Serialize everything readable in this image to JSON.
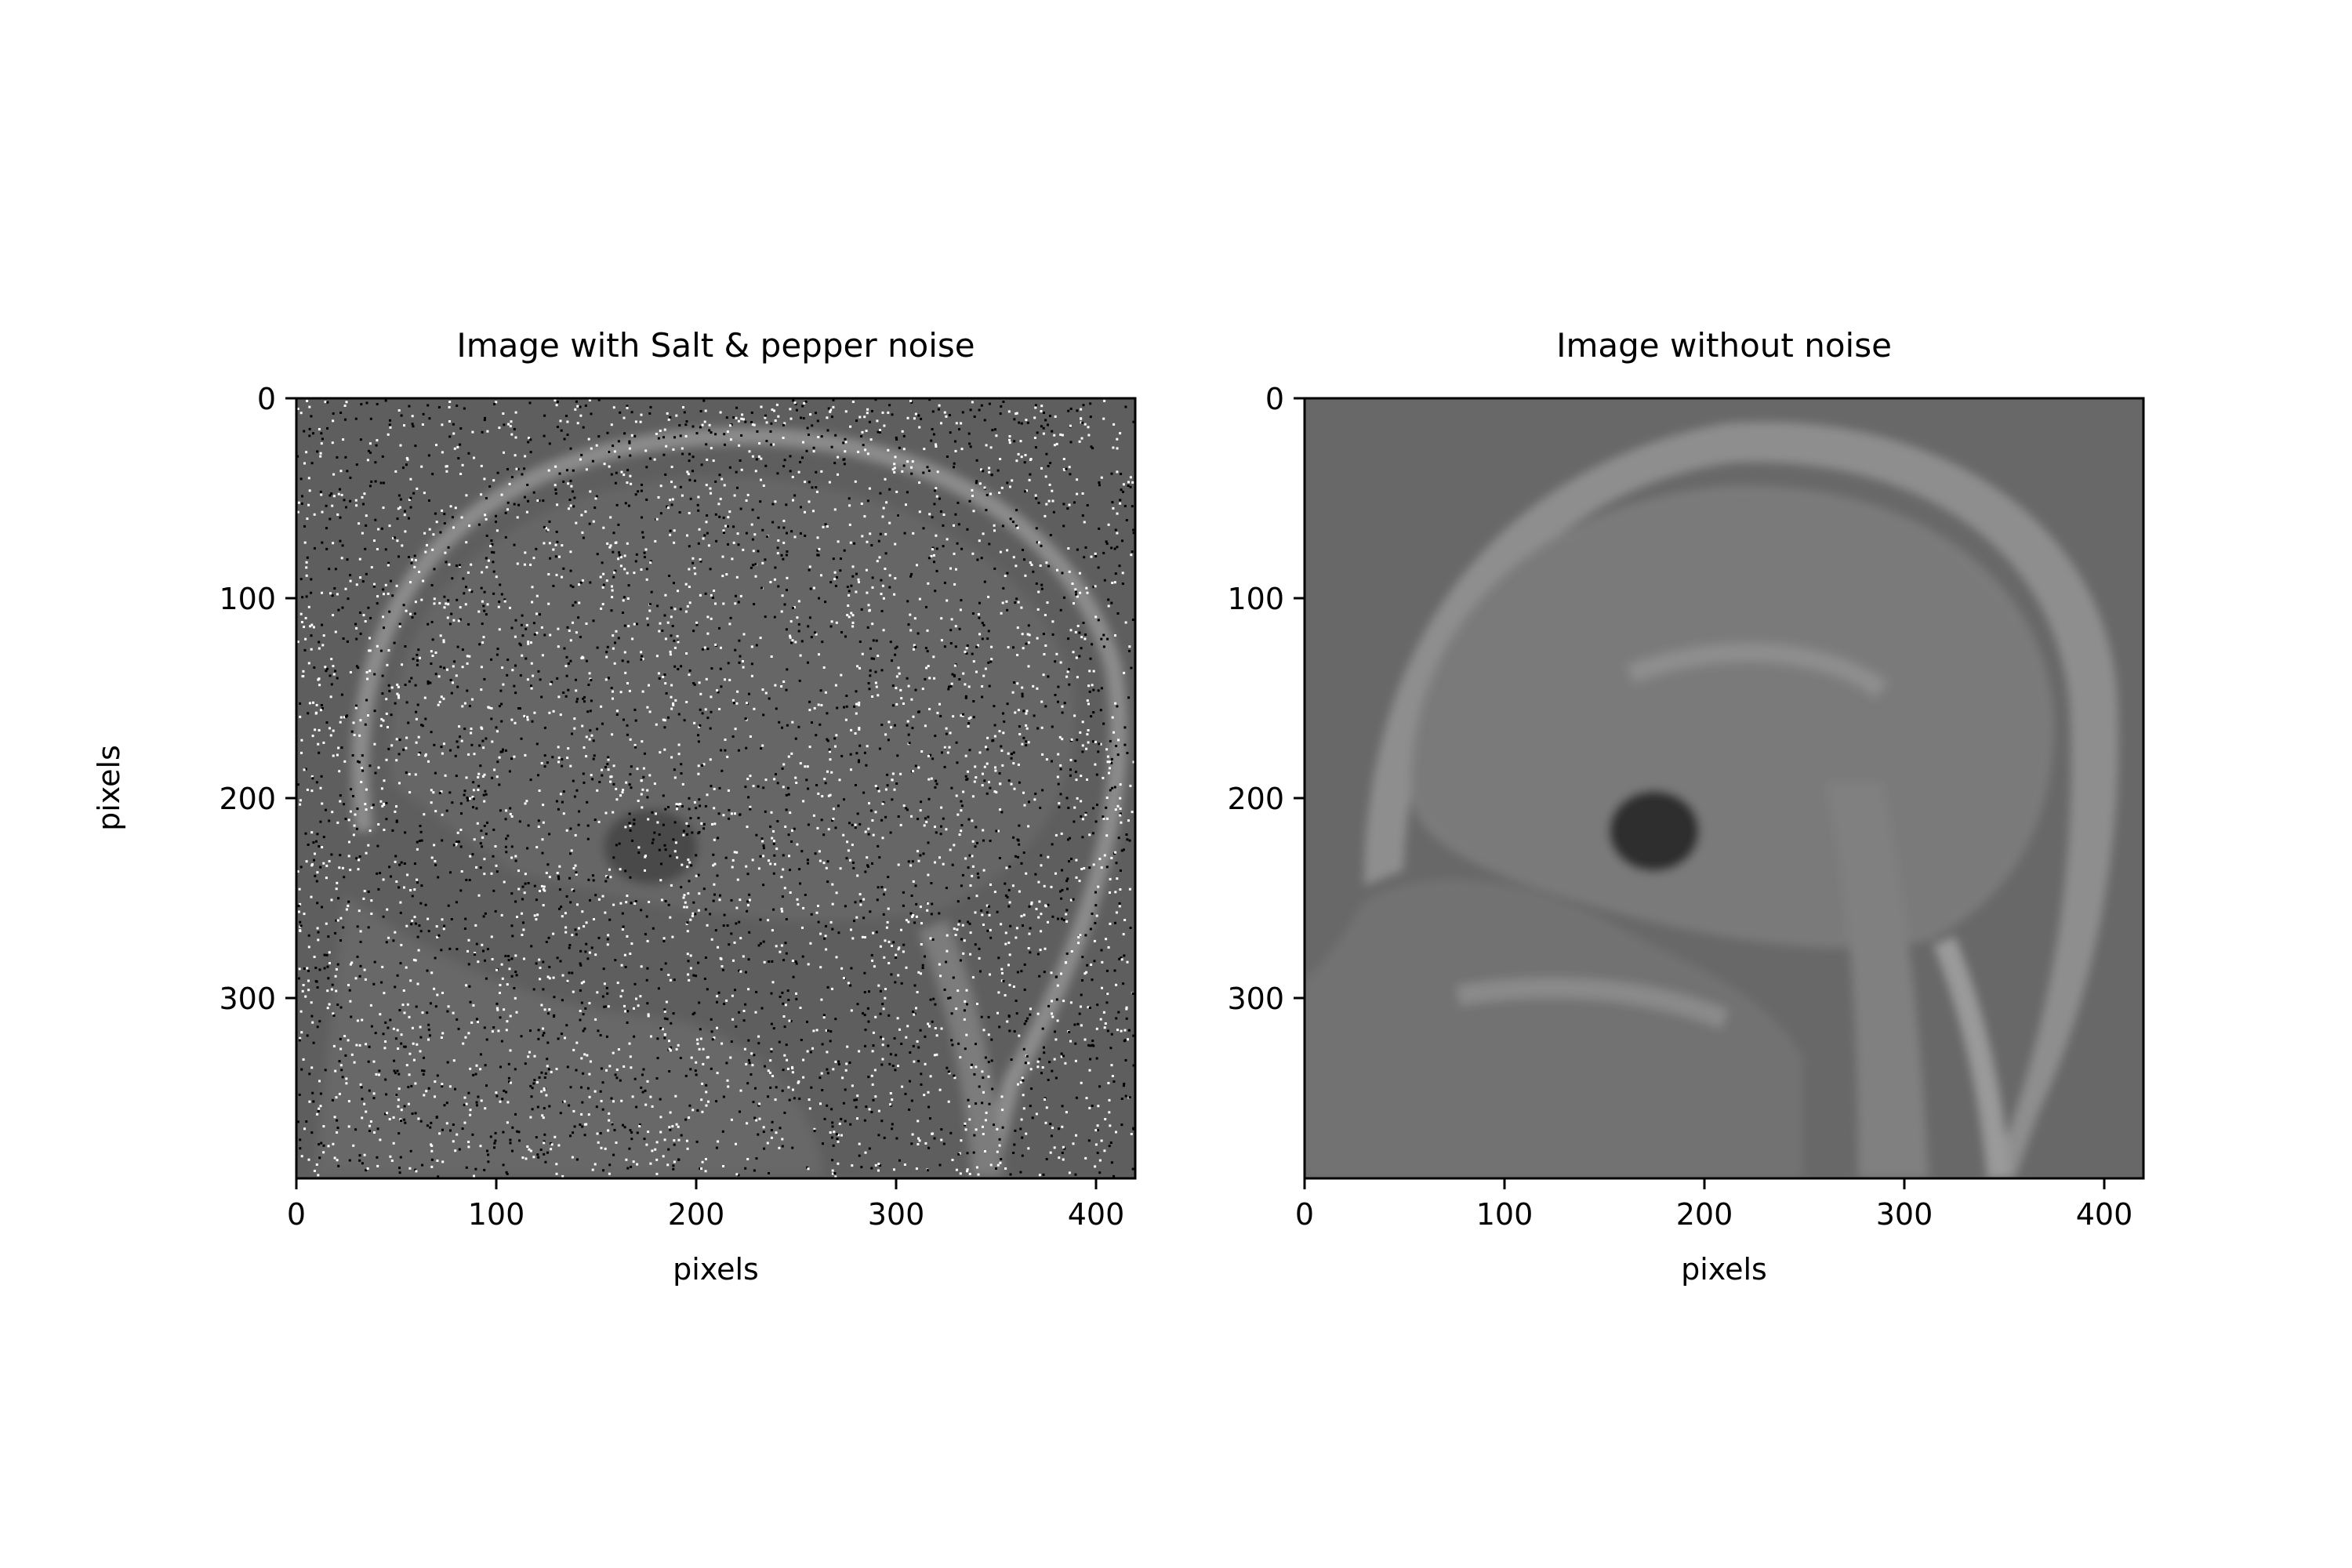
{
  "chart_data": [
    {
      "type": "heatmap",
      "title": "Image with Salt & pepper noise",
      "xlabel": "pixels",
      "ylabel": "pixels",
      "x_ticks": [
        0,
        100,
        200,
        300,
        400
      ],
      "y_ticks": [
        0,
        100,
        200,
        300
      ],
      "xlim": [
        0,
        420
      ],
      "ylim": [
        390,
        0
      ],
      "colormap": "gray",
      "content": "sagittal head MRI slice with salt-and-pepper noise"
    },
    {
      "type": "heatmap",
      "title": "Image without noise",
      "xlabel": "pixels",
      "ylabel": "",
      "x_ticks": [
        0,
        100,
        200,
        300,
        400
      ],
      "y_ticks": [
        0,
        100,
        200,
        300
      ],
      "xlim": [
        0,
        420
      ],
      "ylim": [
        390,
        0
      ],
      "colormap": "gray",
      "content": "sagittal head MRI slice"
    }
  ],
  "colors": {
    "noisy_background": "#5e5e5e",
    "clean_background": "#686868",
    "tissue": "#7a7a7a",
    "bright_tissue": "#9a9a9a",
    "dark_cavity": "#2e2e2e"
  }
}
